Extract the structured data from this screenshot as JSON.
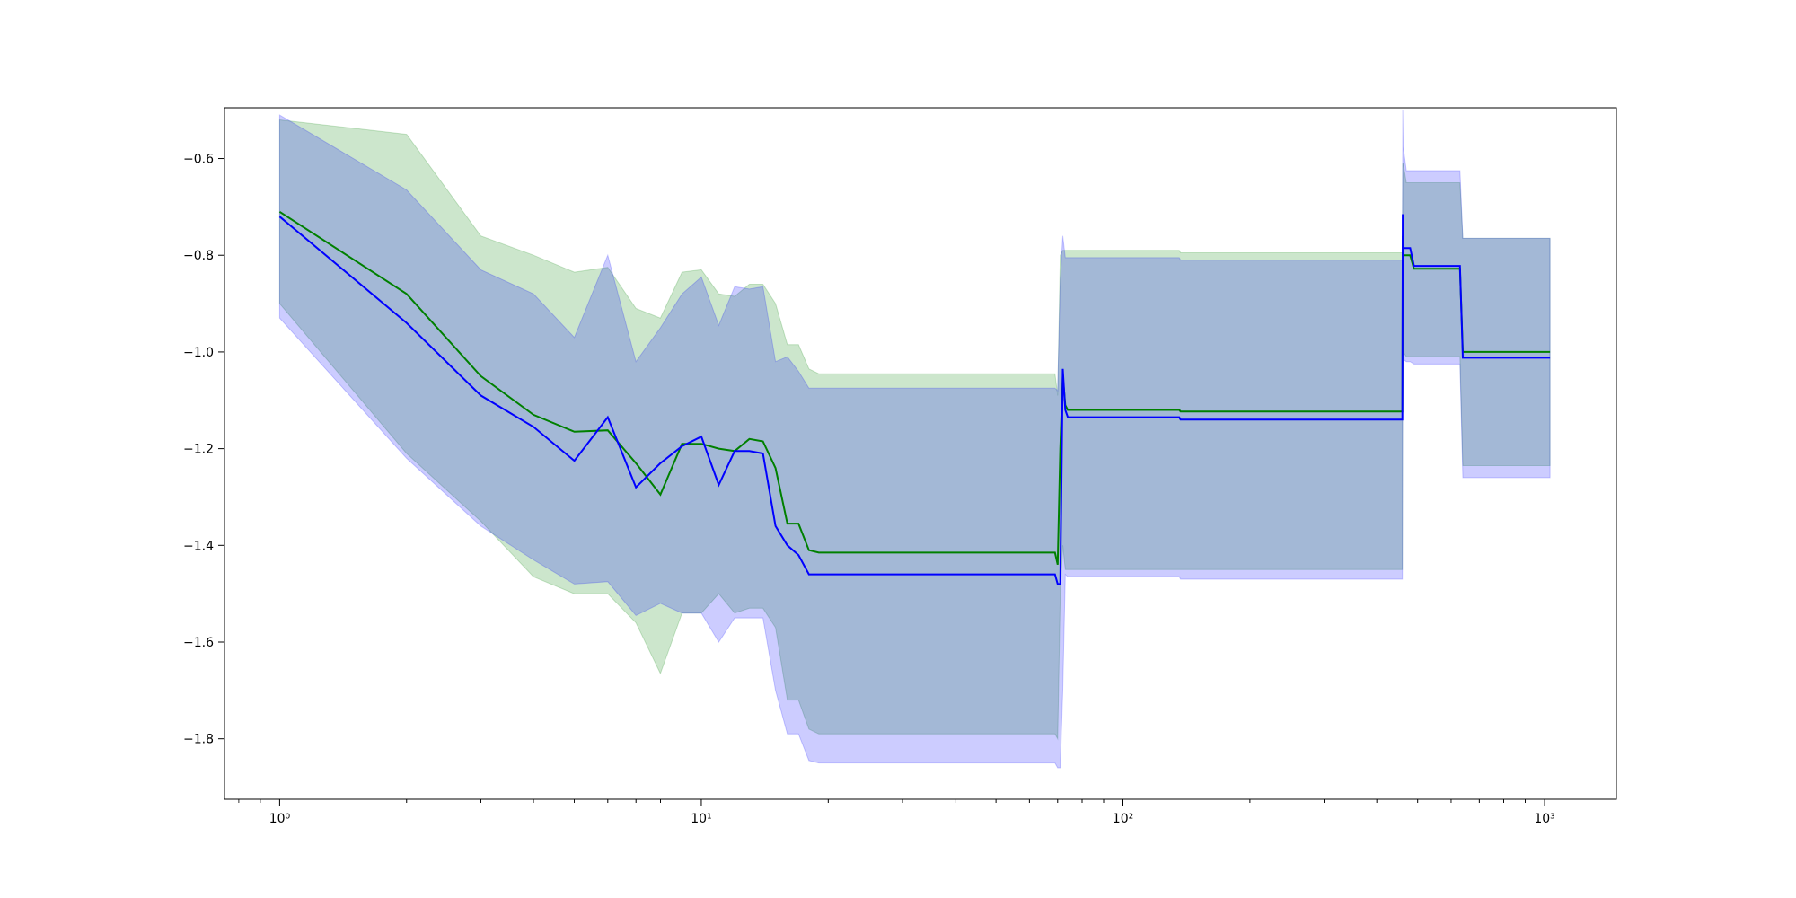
{
  "chart_data": {
    "type": "line",
    "title": "",
    "xlabel": "",
    "ylabel": "",
    "xscale": "log",
    "xlim": [
      0.74,
      1480
    ],
    "ylim": [
      -1.925,
      -0.495
    ],
    "grid": false,
    "x_ticks": [
      {
        "value": 1,
        "label": "10⁰"
      },
      {
        "value": 10,
        "label": "10¹"
      },
      {
        "value": 100,
        "label": "10²"
      },
      {
        "value": 1000,
        "label": "10³"
      }
    ],
    "y_ticks": [
      {
        "value": -0.6,
        "label": "−0.6"
      },
      {
        "value": -0.8,
        "label": "−0.8"
      },
      {
        "value": -1.0,
        "label": "−1.0"
      },
      {
        "value": -1.2,
        "label": "−1.2"
      },
      {
        "value": -1.4,
        "label": "−1.4"
      },
      {
        "value": -1.6,
        "label": "−1.6"
      },
      {
        "value": -1.8,
        "label": "−1.8"
      }
    ],
    "series": [
      {
        "color": "#008000",
        "band_color": "#008000",
        "band_opacity": 0.2,
        "x": [
          1,
          2,
          3,
          4,
          5,
          6,
          7,
          8,
          9,
          10,
          11,
          12,
          13,
          14,
          15,
          16,
          17,
          18,
          19,
          20,
          68,
          69,
          70,
          71,
          72,
          73,
          74,
          75,
          80,
          136,
          137,
          460,
          461,
          462,
          470,
          480,
          490,
          500,
          630,
          640,
          1030
        ],
        "y": [
          -0.71,
          -0.88,
          -1.05,
          -1.13,
          -1.165,
          -1.162,
          -1.23,
          -1.295,
          -1.19,
          -1.19,
          -1.2,
          -1.205,
          -1.18,
          -1.185,
          -1.24,
          -1.355,
          -1.355,
          -1.41,
          -1.415,
          -1.415,
          -1.415,
          -1.415,
          -1.44,
          -1.2,
          -1.05,
          -1.11,
          -1.12,
          -1.12,
          -1.12,
          -1.12,
          -1.123,
          -1.123,
          -0.76,
          -0.8,
          -0.8,
          -0.8,
          -0.828,
          -0.828,
          -0.828,
          -1.0,
          -1.0
        ],
        "lower": [
          -0.9,
          -1.21,
          -1.35,
          -1.465,
          -1.5,
          -1.5,
          -1.56,
          -1.665,
          -1.54,
          -1.54,
          -1.5,
          -1.54,
          -1.53,
          -1.53,
          -1.57,
          -1.72,
          -1.72,
          -1.78,
          -1.79,
          -1.79,
          -1.79,
          -1.79,
          -1.8,
          -1.5,
          -1.4,
          -1.45,
          -1.45,
          -1.45,
          -1.45,
          -1.45,
          -1.45,
          -1.45,
          -1.0,
          -1.0,
          -1.01,
          -1.01,
          -1.01,
          -1.01,
          -1.01,
          -1.235,
          -1.235
        ],
        "upper": [
          -0.52,
          -0.55,
          -0.76,
          -0.8,
          -0.835,
          -0.825,
          -0.91,
          -0.93,
          -0.835,
          -0.83,
          -0.88,
          -0.885,
          -0.86,
          -0.86,
          -0.9,
          -0.985,
          -0.985,
          -1.035,
          -1.045,
          -1.045,
          -1.045,
          -1.045,
          -1.09,
          -0.8,
          -0.79,
          -0.79,
          -0.79,
          -0.79,
          -0.79,
          -0.79,
          -0.795,
          -0.795,
          -0.61,
          -0.61,
          -0.65,
          -0.65,
          -0.65,
          -0.65,
          -0.65,
          -0.765,
          -0.765
        ]
      },
      {
        "color": "#0000ff",
        "band_color": "#0000ff",
        "band_opacity": 0.2,
        "x": [
          1,
          2,
          3,
          4,
          5,
          6,
          7,
          8,
          9,
          10,
          11,
          12,
          13,
          14,
          15,
          16,
          17,
          18,
          19,
          20,
          68,
          69,
          70,
          71,
          72,
          73,
          74,
          75,
          80,
          136,
          137,
          460,
          461,
          462,
          470,
          480,
          490,
          500,
          630,
          640,
          1030
        ],
        "y": [
          -0.72,
          -0.94,
          -1.09,
          -1.155,
          -1.225,
          -1.135,
          -1.28,
          -1.23,
          -1.195,
          -1.175,
          -1.275,
          -1.205,
          -1.205,
          -1.21,
          -1.36,
          -1.4,
          -1.42,
          -1.46,
          -1.46,
          -1.46,
          -1.46,
          -1.46,
          -1.48,
          -1.48,
          -1.035,
          -1.12,
          -1.135,
          -1.135,
          -1.135,
          -1.135,
          -1.14,
          -1.14,
          -0.715,
          -0.785,
          -0.785,
          -0.785,
          -0.822,
          -0.822,
          -0.822,
          -1.012,
          -1.012
        ],
        "lower": [
          -0.93,
          -1.22,
          -1.36,
          -1.43,
          -1.48,
          -1.475,
          -1.545,
          -1.52,
          -1.54,
          -1.54,
          -1.6,
          -1.55,
          -1.55,
          -1.55,
          -1.7,
          -1.79,
          -1.79,
          -1.845,
          -1.85,
          -1.85,
          -1.85,
          -1.85,
          -1.86,
          -1.86,
          -1.7,
          -1.46,
          -1.465,
          -1.465,
          -1.465,
          -1.465,
          -1.47,
          -1.47,
          -1.0,
          -1.015,
          -1.02,
          -1.02,
          -1.025,
          -1.025,
          -1.025,
          -1.26,
          -1.26
        ],
        "upper": [
          -0.51,
          -0.665,
          -0.83,
          -0.88,
          -0.97,
          -0.8,
          -1.02,
          -0.95,
          -0.88,
          -0.845,
          -0.945,
          -0.865,
          -0.87,
          -0.865,
          -1.02,
          -1.01,
          -1.04,
          -1.075,
          -1.075,
          -1.075,
          -1.075,
          -1.075,
          -1.08,
          -0.85,
          -0.76,
          -0.805,
          -0.805,
          -0.805,
          -0.805,
          -0.805,
          -0.81,
          -0.81,
          -0.5,
          -0.575,
          -0.625,
          -0.625,
          -0.625,
          -0.625,
          -0.625,
          -0.765,
          -0.765
        ]
      }
    ]
  }
}
